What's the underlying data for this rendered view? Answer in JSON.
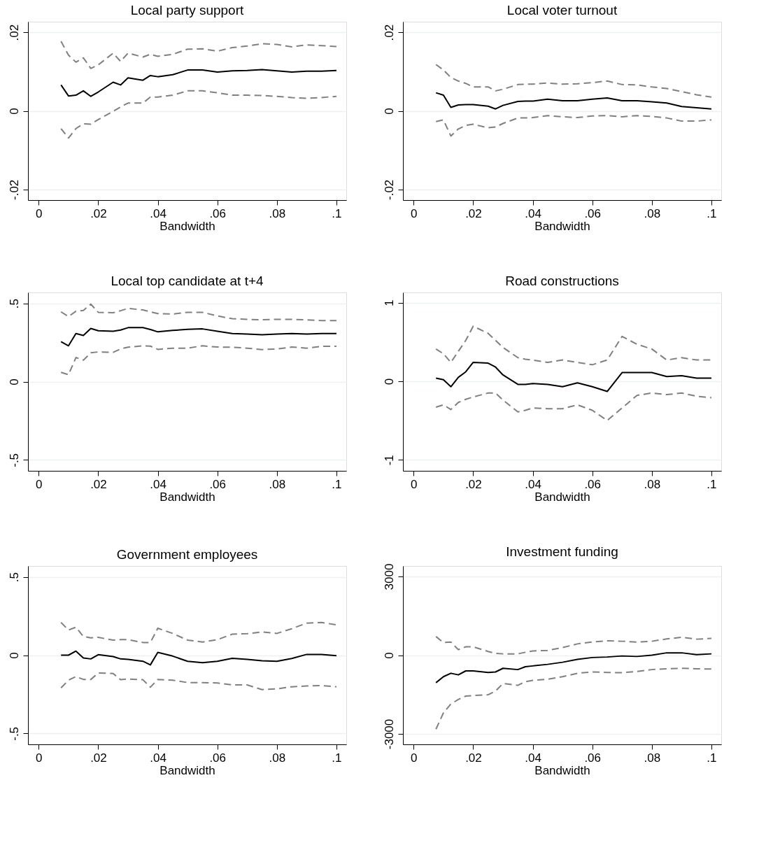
{
  "chart_data": [
    {
      "type": "line",
      "title": "Local party support",
      "xlabel": "Bandwidth",
      "grid": "y",
      "x": [
        0.0075,
        0.01,
        0.0125,
        0.015,
        0.0175,
        0.02,
        0.025,
        0.0275,
        0.03,
        0.035,
        0.0375,
        0.04,
        0.045,
        0.05,
        0.055,
        0.06,
        0.065,
        0.07,
        0.075,
        0.08,
        0.085,
        0.09,
        0.095,
        0.1
      ],
      "xlim": [
        -0.0036,
        0.1033
      ],
      "xticks": [
        0,
        {
          "value": 0.02,
          "label": ".02"
        },
        {
          "value": 0.04,
          "label": ".04"
        },
        {
          "value": 0.06,
          "label": ".06"
        },
        {
          "value": 0.08,
          "label": ".08"
        },
        {
          "value": 0.1,
          "label": ".1"
        }
      ],
      "ylim": [
        -0.0227,
        0.0227
      ],
      "yticks": [
        {
          "value": -0.02,
          "label": "-.02"
        },
        0,
        {
          "value": 0.02,
          "label": ".02"
        }
      ],
      "series": [
        {
          "color": "#000000",
          "line_style": "solid",
          "values": [
            0.0066,
            0.0038,
            0.004,
            0.0051,
            0.0037,
            0.0048,
            0.0073,
            0.0066,
            0.0084,
            0.0078,
            0.009,
            0.0087,
            0.0092,
            0.0104,
            0.0104,
            0.0099,
            0.0102,
            0.0103,
            0.0105,
            0.0102,
            0.0099,
            0.0101,
            0.0101,
            0.0103
          ]
        },
        {
          "color": "#808080",
          "line_style": "dashed",
          "values": [
            0.0177,
            0.0142,
            0.0124,
            0.0135,
            0.0108,
            0.0117,
            0.0147,
            0.0126,
            0.0147,
            0.0137,
            0.0144,
            0.0139,
            0.0144,
            0.0157,
            0.0158,
            0.0152,
            0.0161,
            0.0165,
            0.0171,
            0.0169,
            0.0163,
            0.0168,
            0.0166,
            0.0164
          ]
        },
        {
          "color": "#808080",
          "line_style": "dashed",
          "values": [
            -0.0045,
            -0.0069,
            -0.0045,
            -0.0033,
            -0.0034,
            -0.0022,
            -0.0001,
            0.001,
            0.002,
            0.002,
            0.0035,
            0.0035,
            0.004,
            0.0051,
            0.0051,
            0.0046,
            0.004,
            0.004,
            0.0039,
            0.0037,
            0.0034,
            0.0032,
            0.0034,
            0.0037
          ]
        }
      ]
    },
    {
      "type": "line",
      "title": "Local voter turnout",
      "xlabel": "Bandwidth",
      "grid": "y",
      "x": [
        0.0075,
        0.01,
        0.0125,
        0.015,
        0.0175,
        0.02,
        0.025,
        0.0275,
        0.03,
        0.035,
        0.0375,
        0.04,
        0.045,
        0.05,
        0.055,
        0.06,
        0.065,
        0.07,
        0.075,
        0.08,
        0.085,
        0.09,
        0.095,
        0.1
      ],
      "xlim": [
        -0.0036,
        0.1033
      ],
      "xticks": [
        0,
        {
          "value": 0.02,
          "label": ".02"
        },
        {
          "value": 0.04,
          "label": ".04"
        },
        {
          "value": 0.06,
          "label": ".06"
        },
        {
          "value": 0.08,
          "label": ".08"
        },
        {
          "value": 0.1,
          "label": ".1"
        }
      ],
      "ylim": [
        -0.0227,
        0.0227
      ],
      "yticks": [
        {
          "value": -0.02,
          "label": "-.02"
        },
        0,
        {
          "value": 0.02,
          "label": ".02"
        }
      ],
      "series": [
        {
          "color": "#000000",
          "line_style": "solid",
          "values": [
            0.0046,
            0.004,
            0.0009,
            0.0015,
            0.0016,
            0.0016,
            0.0012,
            0.0005,
            0.0014,
            0.0024,
            0.0025,
            0.0025,
            0.003,
            0.0026,
            0.0026,
            0.003,
            0.0033,
            0.0026,
            0.0026,
            0.0023,
            0.002,
            0.0011,
            0.0008,
            0.0005
          ]
        },
        {
          "color": "#808080",
          "line_style": "dashed",
          "values": [
            0.0118,
            0.0104,
            0.0085,
            0.0076,
            0.007,
            0.0061,
            0.0061,
            0.0051,
            0.0055,
            0.0067,
            0.0068,
            0.0068,
            0.0071,
            0.0068,
            0.0069,
            0.0072,
            0.0076,
            0.0067,
            0.0066,
            0.0061,
            0.0057,
            0.0049,
            0.0041,
            0.0035
          ]
        },
        {
          "color": "#808080",
          "line_style": "dashed",
          "values": [
            -0.0027,
            -0.0023,
            -0.0064,
            -0.0046,
            -0.0037,
            -0.0034,
            -0.0043,
            -0.0041,
            -0.0032,
            -0.0018,
            -0.0018,
            -0.0017,
            -0.0012,
            -0.0015,
            -0.0017,
            -0.0013,
            -0.0012,
            -0.0015,
            -0.0012,
            -0.0014,
            -0.0018,
            -0.0026,
            -0.0026,
            -0.0023
          ]
        }
      ]
    },
    {
      "type": "line",
      "title": "Local top candidate at t+4",
      "xlabel": "Bandwidth",
      "grid": "y",
      "x": [
        0.0075,
        0.01,
        0.0125,
        0.015,
        0.0175,
        0.02,
        0.025,
        0.0275,
        0.03,
        0.035,
        0.0375,
        0.04,
        0.045,
        0.05,
        0.055,
        0.06,
        0.065,
        0.07,
        0.075,
        0.08,
        0.085,
        0.09,
        0.095,
        0.1
      ],
      "xlim": [
        -0.0036,
        0.1033
      ],
      "xticks": [
        0,
        {
          "value": 0.02,
          "label": ".02"
        },
        {
          "value": 0.04,
          "label": ".04"
        },
        {
          "value": 0.06,
          "label": ".06"
        },
        {
          "value": 0.08,
          "label": ".08"
        },
        {
          "value": 0.1,
          "label": ".1"
        }
      ],
      "ylim": [
        -0.57,
        0.57
      ],
      "yticks": [
        {
          "value": -0.5,
          "label": "-.5"
        },
        0,
        {
          "value": 0.5,
          "label": ".5"
        }
      ],
      "series": [
        {
          "color": "#000000",
          "line_style": "solid",
          "values": [
            0.255,
            0.229,
            0.307,
            0.295,
            0.34,
            0.325,
            0.322,
            0.33,
            0.345,
            0.345,
            0.333,
            0.318,
            0.327,
            0.334,
            0.337,
            0.322,
            0.307,
            0.304,
            0.3,
            0.304,
            0.307,
            0.304,
            0.307,
            0.307
          ]
        },
        {
          "color": "#808080",
          "line_style": "dashed",
          "values": [
            0.446,
            0.416,
            0.45,
            0.455,
            0.495,
            0.443,
            0.44,
            0.453,
            0.468,
            0.458,
            0.446,
            0.435,
            0.432,
            0.443,
            0.443,
            0.42,
            0.402,
            0.398,
            0.395,
            0.398,
            0.398,
            0.395,
            0.39,
            0.39
          ]
        },
        {
          "color": "#808080",
          "line_style": "dashed",
          "values": [
            0.059,
            0.044,
            0.154,
            0.137,
            0.184,
            0.19,
            0.187,
            0.209,
            0.22,
            0.229,
            0.227,
            0.206,
            0.214,
            0.214,
            0.229,
            0.221,
            0.22,
            0.214,
            0.205,
            0.209,
            0.221,
            0.214,
            0.226,
            0.226
          ]
        }
      ]
    },
    {
      "type": "line",
      "title": "Road constructions",
      "xlabel": "Bandwidth",
      "grid": "y",
      "x": [
        0.0075,
        0.01,
        0.0125,
        0.015,
        0.0175,
        0.02,
        0.025,
        0.0275,
        0.03,
        0.035,
        0.0375,
        0.04,
        0.045,
        0.05,
        0.055,
        0.06,
        0.065,
        0.07,
        0.075,
        0.08,
        0.085,
        0.09,
        0.095,
        0.1
      ],
      "xlim": [
        -0.0036,
        0.1033
      ],
      "xticks": [
        0,
        {
          "value": 0.02,
          "label": ".02"
        },
        {
          "value": 0.04,
          "label": ".04"
        },
        {
          "value": 0.06,
          "label": ".06"
        },
        {
          "value": 0.08,
          "label": ".08"
        },
        {
          "value": 0.1,
          "label": ".1"
        }
      ],
      "ylim": [
        -1.14,
        1.13
      ],
      "yticks": [
        -1,
        0,
        1
      ],
      "series": [
        {
          "color": "#000000",
          "line_style": "solid",
          "values": [
            0.04,
            0.02,
            -0.07,
            0.05,
            0.12,
            0.24,
            0.23,
            0.18,
            0.08,
            -0.04,
            -0.04,
            -0.03,
            -0.04,
            -0.07,
            -0.02,
            -0.07,
            -0.13,
            0.11,
            0.11,
            0.11,
            0.06,
            0.07,
            0.04,
            0.04
          ]
        },
        {
          "color": "#808080",
          "line_style": "dashed",
          "values": [
            0.41,
            0.35,
            0.24,
            0.38,
            0.52,
            0.7,
            0.61,
            0.52,
            0.43,
            0.3,
            0.28,
            0.27,
            0.24,
            0.27,
            0.24,
            0.21,
            0.27,
            0.57,
            0.47,
            0.41,
            0.27,
            0.3,
            0.27,
            0.27
          ]
        },
        {
          "color": "#808080",
          "line_style": "dashed",
          "values": [
            -0.33,
            -0.3,
            -0.36,
            -0.27,
            -0.23,
            -0.2,
            -0.15,
            -0.15,
            -0.24,
            -0.39,
            -0.37,
            -0.34,
            -0.35,
            -0.35,
            -0.3,
            -0.37,
            -0.5,
            -0.34,
            -0.18,
            -0.15,
            -0.17,
            -0.15,
            -0.19,
            -0.21
          ]
        }
      ]
    },
    {
      "type": "line",
      "title": "Government employees",
      "xlabel": "Bandwidth",
      "grid": "y",
      "x": [
        0.0075,
        0.01,
        0.0125,
        0.015,
        0.0175,
        0.02,
        0.025,
        0.0275,
        0.03,
        0.035,
        0.0375,
        0.04,
        0.045,
        0.05,
        0.055,
        0.06,
        0.065,
        0.07,
        0.075,
        0.08,
        0.085,
        0.09,
        0.095,
        0.1
      ],
      "xlim": [
        -0.0036,
        0.1033
      ],
      "xticks": [
        0,
        {
          "value": 0.02,
          "label": ".02"
        },
        {
          "value": 0.04,
          "label": ".04"
        },
        {
          "value": 0.06,
          "label": ".06"
        },
        {
          "value": 0.08,
          "label": ".08"
        },
        {
          "value": 0.1,
          "label": ".1"
        }
      ],
      "ylim": [
        -0.57,
        0.57
      ],
      "yticks": [
        {
          "value": -0.5,
          "label": "-.5"
        },
        0,
        {
          "value": 0.5,
          "label": ".5"
        }
      ],
      "series": [
        {
          "color": "#000000",
          "line_style": "solid",
          "values": [
            0,
            0,
            0.026,
            -0.018,
            -0.024,
            0.003,
            -0.009,
            -0.024,
            -0.027,
            -0.039,
            -0.062,
            0.018,
            -0.006,
            -0.039,
            -0.048,
            -0.039,
            -0.02,
            -0.027,
            -0.036,
            -0.039,
            -0.021,
            0.005,
            0.005,
            -0.003
          ]
        },
        {
          "color": "#808080",
          "line_style": "dashed",
          "values": [
            0.209,
            0.16,
            0.179,
            0.119,
            0.111,
            0.114,
            0.096,
            0.099,
            0.099,
            0.081,
            0.081,
            0.172,
            0.139,
            0.096,
            0.084,
            0.099,
            0.134,
            0.137,
            0.149,
            0.139,
            0.169,
            0.205,
            0.209,
            0.194
          ]
        },
        {
          "color": "#808080",
          "line_style": "dashed",
          "values": [
            -0.209,
            -0.16,
            -0.137,
            -0.155,
            -0.155,
            -0.114,
            -0.117,
            -0.157,
            -0.152,
            -0.157,
            -0.205,
            -0.155,
            -0.16,
            -0.175,
            -0.175,
            -0.178,
            -0.19,
            -0.19,
            -0.22,
            -0.215,
            -0.202,
            -0.197,
            -0.194,
            -0.202
          ]
        }
      ]
    },
    {
      "type": "line",
      "title": "Investment funding",
      "xlabel": "Bandwidth",
      "grid": "y",
      "x": [
        0.0075,
        0.01,
        0.0125,
        0.015,
        0.0175,
        0.02,
        0.025,
        0.0275,
        0.03,
        0.035,
        0.0375,
        0.04,
        0.045,
        0.05,
        0.055,
        0.06,
        0.065,
        0.07,
        0.075,
        0.08,
        0.085,
        0.09,
        0.095,
        0.1
      ],
      "xlim": [
        -0.0036,
        0.1033
      ],
      "xticks": [
        0,
        {
          "value": 0.02,
          "label": ".02"
        },
        {
          "value": 0.04,
          "label": ".04"
        },
        {
          "value": 0.06,
          "label": ".06"
        },
        {
          "value": 0.08,
          "label": ".08"
        },
        {
          "value": 0.1,
          "label": ".1"
        }
      ],
      "ylim": [
        -3400,
        3400
      ],
      "yticks": [
        -3000,
        0,
        3000
      ],
      "series": [
        {
          "color": "#000000",
          "line_style": "solid",
          "values": [
            -1050,
            -820,
            -690,
            -750,
            -600,
            -600,
            -660,
            -640,
            -500,
            -550,
            -440,
            -410,
            -350,
            -270,
            -160,
            -90,
            -70,
            -30,
            -50,
            0,
            90,
            90,
            20,
            50
          ]
        },
        {
          "color": "#808080",
          "line_style": "dashed",
          "values": [
            710,
            480,
            500,
            210,
            320,
            320,
            140,
            70,
            50,
            50,
            110,
            160,
            180,
            290,
            430,
            500,
            550,
            530,
            500,
            530,
            620,
            680,
            610,
            640
          ]
        },
        {
          "color": "#808080",
          "line_style": "dashed",
          "values": [
            -2820,
            -2200,
            -1860,
            -1690,
            -1560,
            -1540,
            -1510,
            -1370,
            -1080,
            -1150,
            -1010,
            -960,
            -920,
            -820,
            -690,
            -640,
            -660,
            -670,
            -620,
            -550,
            -520,
            -500,
            -520,
            -530
          ]
        }
      ]
    }
  ]
}
